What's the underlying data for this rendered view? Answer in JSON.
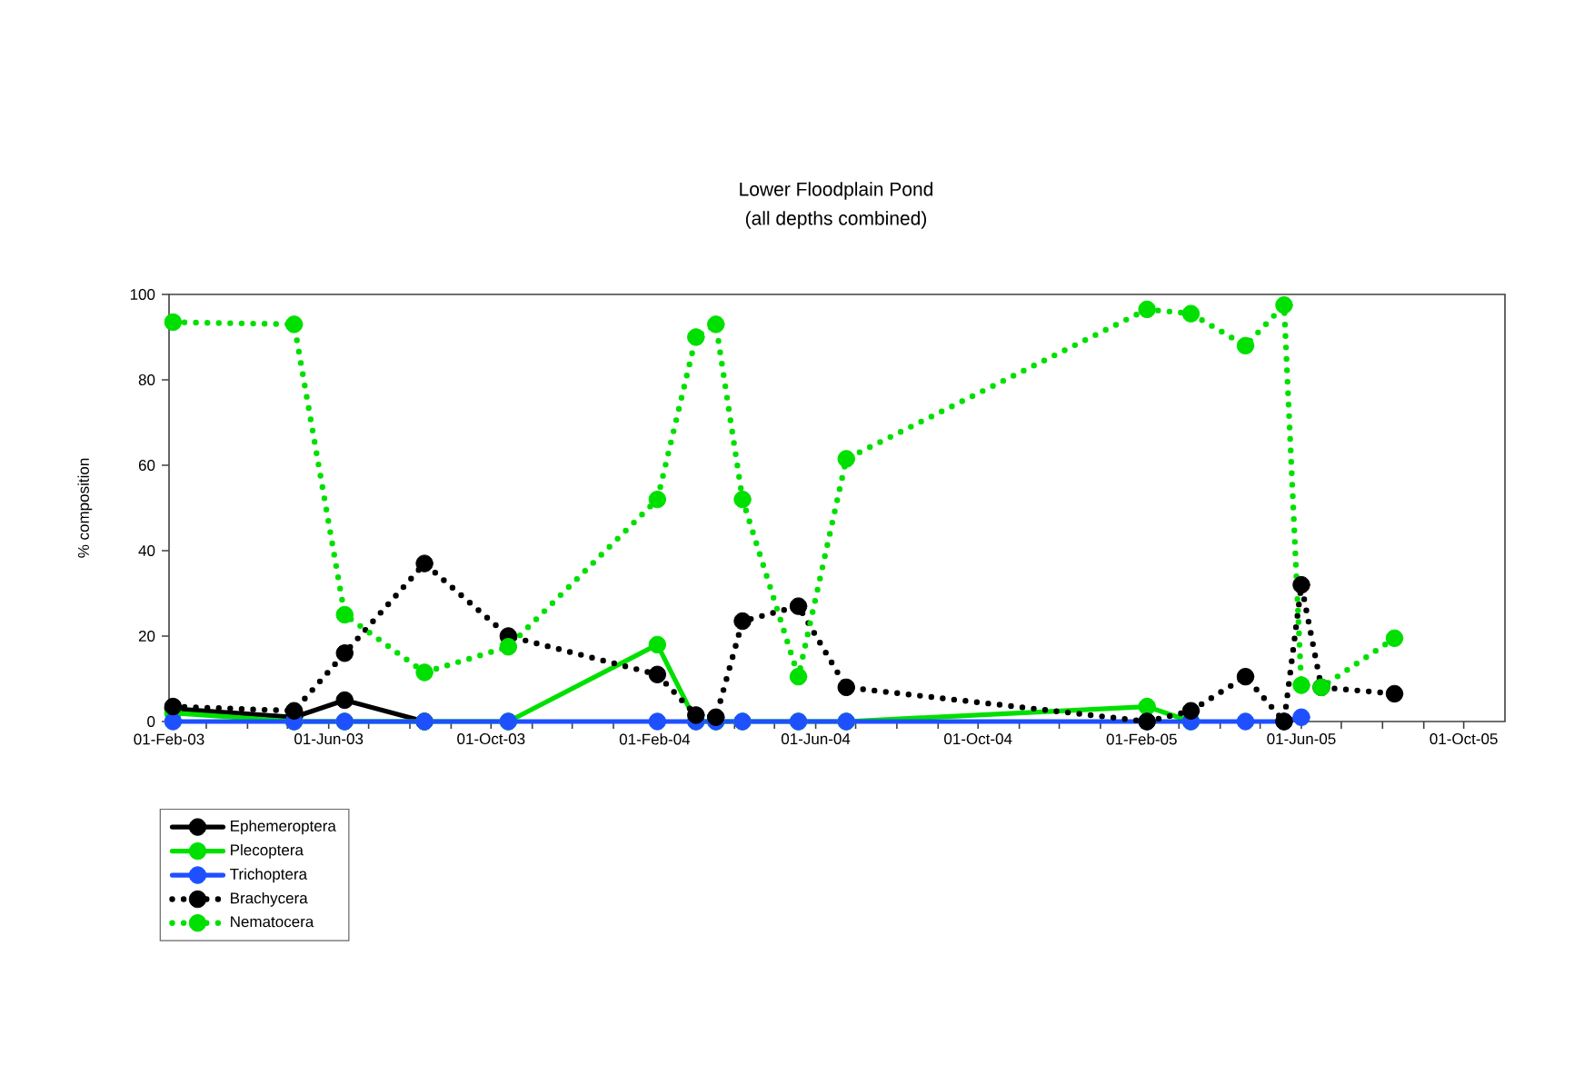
{
  "chart_data": {
    "type": "line",
    "title": "Lower Floodplain Pond",
    "subtitle": "(all depths combined)",
    "ylabel": "% composition",
    "x": [
      "2003-02-04",
      "2003-05-06",
      "2003-06-13",
      "2003-08-12",
      "2003-10-14",
      "2004-02-03",
      "2004-03-03",
      "2004-03-18",
      "2004-04-07",
      "2004-05-19",
      "2004-06-24",
      "2005-02-05",
      "2005-03-10",
      "2005-04-20",
      "2005-05-19",
      "2005-06-01",
      "2005-06-16",
      "2005-08-10"
    ],
    "series": [
      {
        "name": "Ephemeroptera",
        "color": "#000000",
        "line_style": "solid",
        "values": [
          3,
          1,
          5,
          0,
          null,
          null,
          null,
          null,
          null,
          null,
          null,
          null,
          null,
          null,
          null,
          null,
          null,
          null
        ]
      },
      {
        "name": "Plecoptera",
        "color": "#00e000",
        "line_style": "solid",
        "values": [
          2,
          0,
          0,
          0,
          0,
          18,
          0,
          0,
          0,
          0,
          0,
          3.5,
          0,
          null,
          null,
          null,
          null,
          null
        ]
      },
      {
        "name": "Trichoptera",
        "color": "#1e50ff",
        "line_style": "solid",
        "values": [
          0,
          0,
          0,
          0,
          0,
          0,
          0,
          0,
          0,
          0,
          0,
          0,
          0,
          0,
          0,
          1,
          null,
          null
        ]
      },
      {
        "name": "Brachycera",
        "color": "#000000",
        "line_style": "dotted",
        "values": [
          3.5,
          2.5,
          16,
          37,
          20,
          11,
          1.5,
          1,
          23.5,
          27,
          8,
          0,
          2.5,
          10.5,
          0,
          32,
          8,
          6.5
        ]
      },
      {
        "name": "Nematocera",
        "color": "#00e000",
        "line_style": "dotted",
        "values": [
          93.5,
          93,
          25,
          11.5,
          17.5,
          52,
          90,
          93,
          52,
          10.5,
          61.5,
          96.5,
          95.5,
          88,
          97.5,
          8.5,
          8,
          19.5
        ]
      }
    ],
    "xlim": [
      "2003-02-01",
      "2005-11-01"
    ],
    "xticks": [
      {
        "value": "2003-02-01",
        "label": "01-Feb-03"
      },
      {
        "value": "2003-03-01",
        "label": null
      },
      {
        "value": "2003-04-01",
        "label": null
      },
      {
        "value": "2003-05-01",
        "label": null
      },
      {
        "value": "2003-06-01",
        "label": "01-Jun-03"
      },
      {
        "value": "2003-07-01",
        "label": null
      },
      {
        "value": "2003-08-01",
        "label": null
      },
      {
        "value": "2003-09-01",
        "label": null
      },
      {
        "value": "2003-10-01",
        "label": "01-Oct-03"
      },
      {
        "value": "2003-11-01",
        "label": null
      },
      {
        "value": "2003-12-01",
        "label": null
      },
      {
        "value": "2004-01-01",
        "label": null
      },
      {
        "value": "2004-02-01",
        "label": "01-Feb-04"
      },
      {
        "value": "2004-03-01",
        "label": null
      },
      {
        "value": "2004-04-01",
        "label": null
      },
      {
        "value": "2004-05-01",
        "label": null
      },
      {
        "value": "2004-06-01",
        "label": "01-Jun-04"
      },
      {
        "value": "2004-07-01",
        "label": null
      },
      {
        "value": "2004-08-01",
        "label": null
      },
      {
        "value": "2004-09-01",
        "label": null
      },
      {
        "value": "2004-10-01",
        "label": "01-Oct-04"
      },
      {
        "value": "2004-11-01",
        "label": null
      },
      {
        "value": "2004-12-01",
        "label": null
      },
      {
        "value": "2005-01-01",
        "label": null
      },
      {
        "value": "2005-02-01",
        "label": "01-Feb-05"
      },
      {
        "value": "2005-03-01",
        "label": null
      },
      {
        "value": "2005-04-01",
        "label": null
      },
      {
        "value": "2005-05-01",
        "label": null
      },
      {
        "value": "2005-06-01",
        "label": "01-Jun-05"
      },
      {
        "value": "2005-07-01",
        "label": null
      },
      {
        "value": "2005-08-01",
        "label": null
      },
      {
        "value": "2005-09-01",
        "label": null
      },
      {
        "value": "2005-10-01",
        "label": "01-Oct-05"
      }
    ],
    "ylim": [
      0,
      100
    ],
    "yticks": [
      0,
      20,
      40,
      60,
      80,
      100
    ],
    "marker": "circle",
    "legend": "bottom left"
  }
}
